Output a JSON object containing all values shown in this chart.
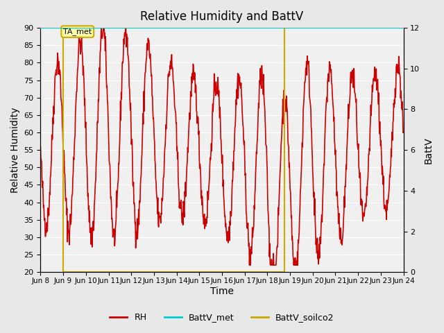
{
  "title": "Relative Humidity and BattV",
  "xlabel": "Time",
  "ylabel_left": "Relative Humidity",
  "ylabel_right": "BattV",
  "xlim_start": 8.0,
  "xlim_end": 24.0,
  "ylim_left": [
    20,
    90
  ],
  "ylim_right": [
    0,
    12
  ],
  "bg_color": "#e8e8e8",
  "plot_bg_color": "#f0f0f0",
  "rh_color": "#cc0000",
  "battv_met_color": "#00cccc",
  "battv_soilco2_color": "#ccaa00",
  "annotation_text": "TA_met",
  "vline1_x": 9.0,
  "vline2_x": 18.75,
  "battv_met_value": 12.0,
  "battv_soilco2_value": 12.0,
  "xtick_labels": [
    "Jun 8",
    "Jun 9",
    "Jun 10",
    "Jun 11",
    "Jun 12",
    "Jun 13",
    "Jun 14",
    "Jun 15",
    "Jun 16",
    "Jun 17",
    "Jun 18",
    "Jun 19",
    "Jun 20",
    "Jun 21",
    "Jun 22",
    "Jun 23",
    "Jun 24"
  ],
  "xtick_positions": [
    8,
    9,
    10,
    11,
    12,
    13,
    14,
    15,
    16,
    17,
    18,
    19,
    20,
    21,
    22,
    23,
    24
  ]
}
